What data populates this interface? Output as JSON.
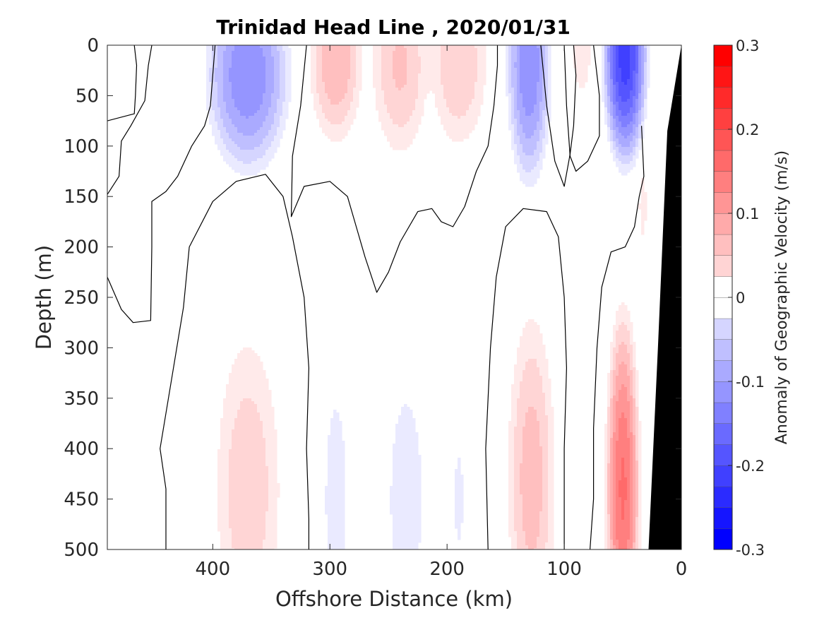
{
  "chart_data": {
    "type": "heatmap",
    "title": "Trinidad Head Line , 2020/01/31",
    "xlabel": "Offshore Distance (km)",
    "ylabel": "Depth (m)",
    "xlim": [
      490,
      0
    ],
    "ylim": [
      0,
      500
    ],
    "x_ticks": [
      400,
      300,
      200,
      100,
      0
    ],
    "x_tick_labels": [
      "400",
      "300",
      "200",
      "100",
      "0"
    ],
    "y_ticks": [
      0,
      50,
      100,
      150,
      200,
      250,
      300,
      350,
      400,
      450,
      500
    ],
    "y_tick_labels": [
      "0",
      "50",
      "100",
      "150",
      "200",
      "250",
      "300",
      "350",
      "400",
      "450",
      "500"
    ],
    "colorbar": {
      "label": "Anomaly of Geographic Velocity (m/s)",
      "range": [
        -0.3,
        0.3
      ],
      "step": 0.025,
      "ticks": [
        -0.3,
        -0.2,
        -0.1,
        0,
        0.1,
        0.2,
        0.3
      ],
      "tick_labels": [
        "-0.3",
        "-0.2",
        "-0.1",
        "0",
        "0.1",
        "0.2",
        "0.3"
      ],
      "negative_color": "#0000ff",
      "positive_color": "#ff0000",
      "zero_color": "#ffffff"
    },
    "bathymetry_color": "#000000",
    "bathymetry": [
      [
        0,
        0
      ],
      [
        12,
        85
      ],
      [
        20,
        300
      ],
      [
        28,
        500
      ],
      [
        0,
        500
      ]
    ],
    "anomaly_features": [
      {
        "x_center": 370,
        "x_width": 85,
        "depth_center": 30,
        "depth_extent": 115,
        "peak": -0.15
      },
      {
        "x_center": 295,
        "x_width": 55,
        "depth_center": 15,
        "depth_extent": 100,
        "peak": 0.1
      },
      {
        "x_center": 240,
        "x_width": 60,
        "depth_center": 20,
        "depth_extent": 110,
        "peak": 0.08
      },
      {
        "x_center": 190,
        "x_width": 60,
        "depth_center": 20,
        "depth_extent": 100,
        "peak": 0.075
      },
      {
        "x_center": 130,
        "x_width": 45,
        "depth_center": 20,
        "depth_extent": 140,
        "peak": -0.15
      },
      {
        "x_center": 85,
        "x_width": 20,
        "depth_center": 10,
        "depth_extent": 50,
        "peak": 0.05
      },
      {
        "x_center": 48,
        "x_width": 45,
        "depth_center": 10,
        "depth_extent": 130,
        "peak": -0.24
      },
      {
        "x_center": 33,
        "x_width": 8,
        "depth_center": 160,
        "depth_extent": 45,
        "peak": 0.05
      },
      {
        "x_center": 370,
        "x_width": 70,
        "depth_center": 440,
        "depth_extent": 190,
        "peak": 0.07
      },
      {
        "x_center": 295,
        "x_width": 30,
        "depth_center": 450,
        "depth_extent": 160,
        "peak": -0.04
      },
      {
        "x_center": 235,
        "x_width": 40,
        "depth_center": 450,
        "depth_extent": 145,
        "peak": -0.05
      },
      {
        "x_center": 190,
        "x_width": 18,
        "depth_center": 450,
        "depth_extent": 110,
        "peak": -0.03
      },
      {
        "x_center": 128,
        "x_width": 50,
        "depth_center": 430,
        "depth_extent": 200,
        "peak": 0.09
      },
      {
        "x_center": 50,
        "x_width": 35,
        "depth_center": 440,
        "depth_extent": 210,
        "peak": 0.18
      }
    ],
    "zero_contours": [
      [
        [
          490,
          75
        ],
        [
          467,
          68
        ],
        [
          466,
          50
        ],
        [
          465,
          20
        ],
        [
          467,
          0
        ]
      ],
      [
        [
          490,
          148
        ],
        [
          480,
          130
        ],
        [
          478,
          95
        ],
        [
          470,
          80
        ],
        [
          458,
          55
        ],
        [
          455,
          20
        ],
        [
          452,
          0
        ]
      ],
      [
        [
          490,
          230
        ],
        [
          478,
          262
        ],
        [
          468,
          275
        ],
        [
          453,
          273
        ],
        [
          452,
          200
        ],
        [
          452,
          155
        ],
        [
          440,
          145
        ],
        [
          430,
          130
        ],
        [
          418,
          100
        ],
        [
          407,
          80
        ],
        [
          402,
          60
        ],
        [
          400,
          30
        ],
        [
          398,
          0
        ]
      ],
      [
        [
          440,
          500
        ],
        [
          440,
          440
        ],
        [
          445,
          400
        ],
        [
          435,
          330
        ],
        [
          425,
          260
        ],
        [
          420,
          200
        ],
        [
          400,
          155
        ],
        [
          380,
          135
        ],
        [
          355,
          128
        ],
        [
          340,
          150
        ],
        [
          332,
          190
        ],
        [
          322,
          250
        ],
        [
          318,
          320
        ],
        [
          320,
          400
        ],
        [
          318,
          470
        ],
        [
          318,
          500
        ]
      ],
      [
        [
          320,
          0
        ],
        [
          325,
          60
        ],
        [
          332,
          110
        ],
        [
          333,
          170
        ],
        [
          322,
          140
        ],
        [
          300,
          135
        ],
        [
          285,
          150
        ],
        [
          270,
          210
        ],
        [
          260,
          245
        ],
        [
          250,
          225
        ],
        [
          240,
          195
        ],
        [
          225,
          165
        ],
        [
          213,
          162
        ],
        [
          205,
          175
        ],
        [
          195,
          180
        ],
        [
          185,
          160
        ],
        [
          175,
          125
        ],
        [
          165,
          100
        ],
        [
          160,
          60
        ],
        [
          157,
          20
        ],
        [
          157,
          0
        ]
      ],
      [
        [
          165,
          500
        ],
        [
          167,
          400
        ],
        [
          163,
          300
        ],
        [
          158,
          230
        ],
        [
          150,
          180
        ],
        [
          135,
          162
        ],
        [
          115,
          165
        ],
        [
          105,
          190
        ],
        [
          100,
          250
        ],
        [
          98,
          320
        ],
        [
          100,
          400
        ],
        [
          100,
          500
        ]
      ],
      [
        [
          120,
          0
        ],
        [
          115,
          60
        ],
        [
          108,
          115
        ],
        [
          100,
          140
        ],
        [
          95,
          108
        ],
        [
          92,
          80
        ],
        [
          90,
          30
        ],
        [
          92,
          0
        ]
      ],
      [
        [
          75,
          0
        ],
        [
          70,
          50
        ],
        [
          70,
          90
        ],
        [
          80,
          115
        ],
        [
          90,
          125
        ],
        [
          95,
          110
        ],
        [
          98,
          60
        ],
        [
          100,
          0
        ]
      ],
      [
        [
          78,
          500
        ],
        [
          75,
          450
        ],
        [
          75,
          380
        ],
        [
          72,
          300
        ],
        [
          68,
          240
        ],
        [
          60,
          205
        ],
        [
          48,
          200
        ],
        [
          40,
          180
        ],
        [
          36,
          150
        ],
        [
          32,
          130
        ],
        [
          34,
          80
        ]
      ]
    ]
  }
}
